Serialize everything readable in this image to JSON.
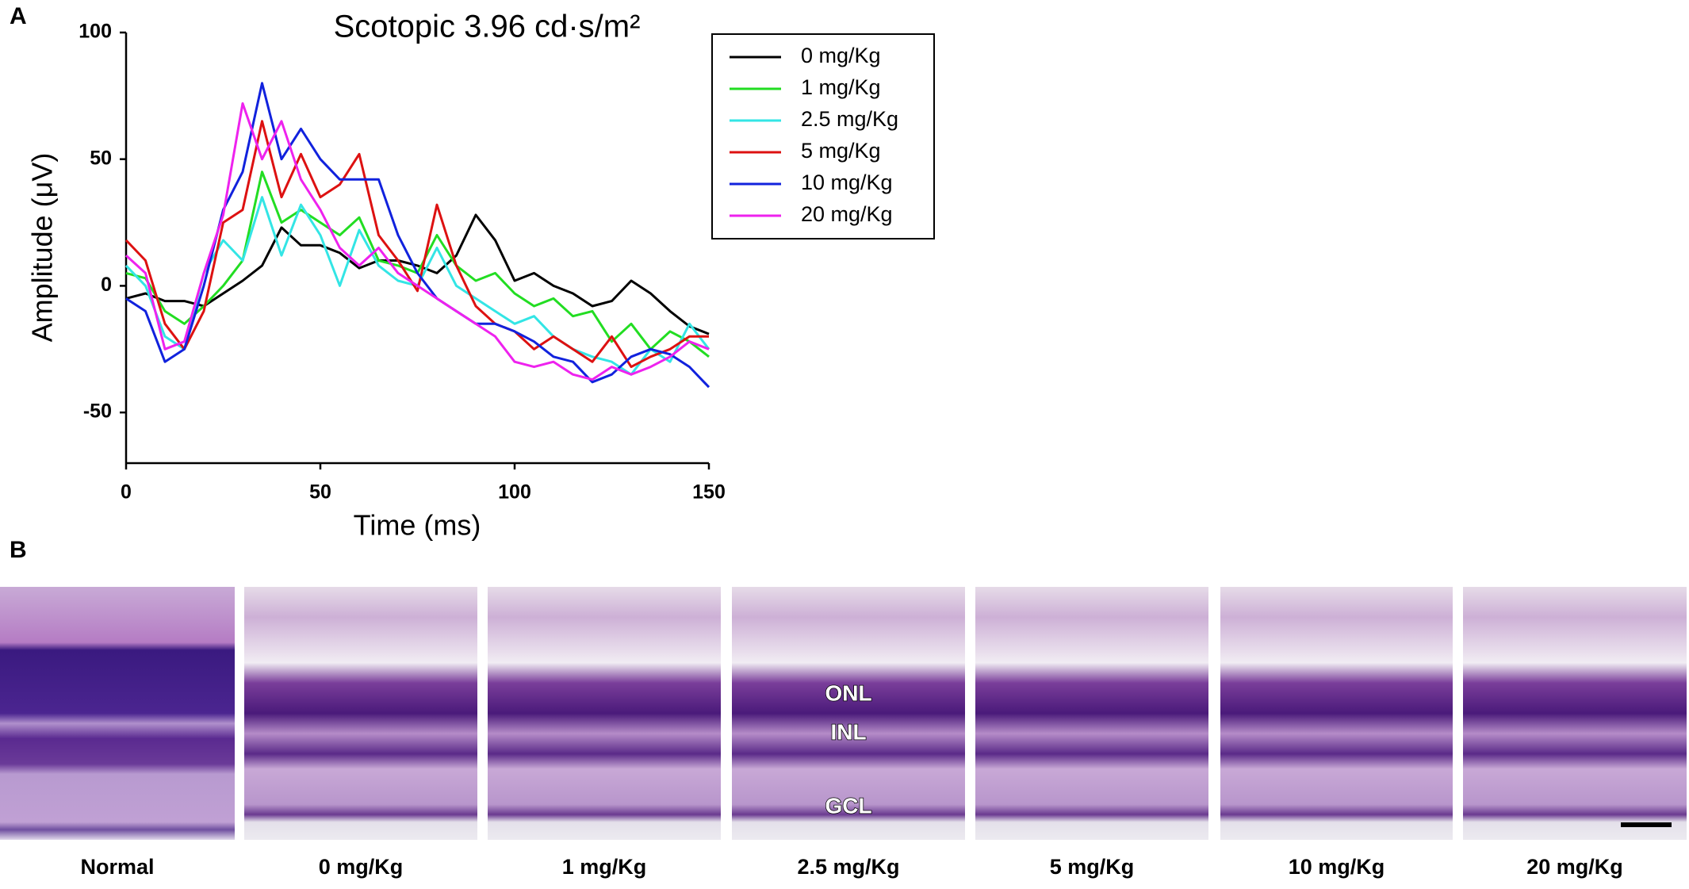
{
  "panel_labels": [
    "A",
    "B"
  ],
  "chart_data": {
    "type": "line",
    "title": "Scotopic 3.96 cd·s/m²",
    "x_label": "Time (ms)",
    "y_label": "Amplitude (μV)",
    "x": [
      0,
      5,
      10,
      15,
      20,
      25,
      30,
      35,
      40,
      45,
      50,
      55,
      60,
      65,
      70,
      75,
      80,
      85,
      90,
      95,
      100,
      105,
      110,
      115,
      120,
      125,
      130,
      135,
      140,
      145,
      150
    ],
    "series": [
      {
        "name": "0 mg/Kg",
        "color": "#000000",
        "values": [
          -5,
          -3,
          -6,
          -6,
          -8,
          -3,
          2,
          8,
          23,
          16,
          16,
          13,
          7,
          10,
          10,
          8,
          5,
          12,
          28,
          18,
          2,
          5,
          0,
          -3,
          -8,
          -6,
          2,
          -3,
          -10,
          -16,
          -19
        ]
      },
      {
        "name": "1 mg/Kg",
        "color": "#22dd22",
        "values": [
          5,
          3,
          -10,
          -15,
          -8,
          0,
          10,
          45,
          25,
          30,
          25,
          20,
          27,
          10,
          8,
          5,
          20,
          8,
          2,
          5,
          -3,
          -8,
          -5,
          -12,
          -10,
          -22,
          -15,
          -25,
          -18,
          -22,
          -28
        ]
      },
      {
        "name": "2.5 mg/Kg",
        "color": "#33e5e5",
        "values": [
          8,
          0,
          -20,
          -25,
          5,
          18,
          10,
          35,
          12,
          32,
          20,
          0,
          22,
          8,
          2,
          0,
          15,
          0,
          -5,
          -10,
          -15,
          -12,
          -20,
          -25,
          -28,
          -30,
          -35,
          -25,
          -30,
          -15,
          -25
        ]
      },
      {
        "name": "5 mg/Kg",
        "color": "#dd1111",
        "values": [
          18,
          10,
          -15,
          -25,
          -10,
          25,
          30,
          65,
          35,
          52,
          35,
          40,
          52,
          20,
          10,
          -2,
          32,
          8,
          -8,
          -15,
          -18,
          -25,
          -20,
          -25,
          -30,
          -20,
          -32,
          -28,
          -25,
          -20,
          -20
        ]
      },
      {
        "name": "10 mg/Kg",
        "color": "#1122dd",
        "values": [
          -5,
          -10,
          -30,
          -25,
          0,
          30,
          45,
          80,
          50,
          62,
          50,
          42,
          42,
          42,
          20,
          5,
          -5,
          -10,
          -15,
          -15,
          -18,
          -22,
          -28,
          -30,
          -38,
          -35,
          -28,
          -25,
          -27,
          -32,
          -40
        ]
      },
      {
        "name": "20 mg/Kg",
        "color": "#ee22ee",
        "values": [
          12,
          5,
          -25,
          -22,
          5,
          28,
          72,
          50,
          65,
          42,
          30,
          15,
          8,
          15,
          5,
          0,
          -5,
          -10,
          -15,
          -20,
          -30,
          -32,
          -30,
          -35,
          -37,
          -32,
          -35,
          -32,
          -28,
          -22,
          -25
        ]
      }
    ],
    "xlim": [
      0,
      150
    ],
    "xticks": [
      0,
      50,
      100,
      150
    ],
    "ylim": [
      -70,
      100
    ],
    "yticks": [
      -50,
      0,
      50,
      100
    ]
  },
  "panel_b": {
    "captions": [
      "Normal",
      "0 mg/Kg",
      "1 mg/Kg",
      "2.5 mg/Kg",
      "5 mg/Kg",
      "10 mg/Kg",
      "20 mg/Kg"
    ],
    "layer_labels": [
      "ONL",
      "INL",
      "GCL"
    ]
  }
}
